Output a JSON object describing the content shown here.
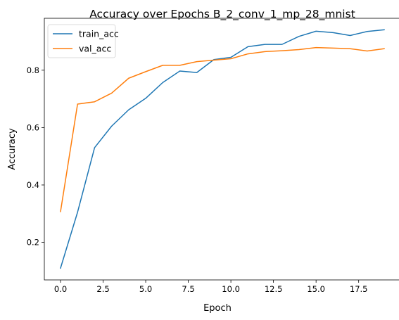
{
  "chart_data": {
    "type": "line",
    "title": "Accuracy over Epochs B_2_conv_1_mp_28_mnist",
    "xlabel": "Epoch",
    "ylabel": "Accuracy",
    "xlim": [
      -0.95,
      19.95
    ],
    "ylim": [
      0.069,
      0.981
    ],
    "xticks": [
      0.0,
      2.5,
      5.0,
      7.5,
      10.0,
      12.5,
      15.0,
      17.5
    ],
    "xtick_labels": [
      "0.0",
      "2.5",
      "5.0",
      "7.5",
      "10.0",
      "12.5",
      "15.0",
      "17.5"
    ],
    "yticks": [
      0.2,
      0.4,
      0.6,
      0.8
    ],
    "ytick_labels": [
      "0.2",
      "0.4",
      "0.6",
      "0.8"
    ],
    "grid": false,
    "legend_position": "top-left",
    "x": [
      0,
      1,
      2,
      3,
      4,
      5,
      6,
      7,
      8,
      9,
      10,
      11,
      12,
      13,
      14,
      15,
      16,
      17,
      18,
      19
    ],
    "series": [
      {
        "name": "train_acc",
        "color": "#1f77b4",
        "values": [
          0.11,
          0.305,
          0.53,
          0.605,
          0.662,
          0.702,
          0.757,
          0.797,
          0.792,
          0.837,
          0.845,
          0.882,
          0.89,
          0.89,
          0.918,
          0.936,
          0.931,
          0.921,
          0.935,
          0.941
        ]
      },
      {
        "name": "val_acc",
        "color": "#ff7f0e",
        "values": [
          0.307,
          0.682,
          0.69,
          0.72,
          0.772,
          0.795,
          0.817,
          0.817,
          0.83,
          0.835,
          0.84,
          0.857,
          0.865,
          0.868,
          0.872,
          0.879,
          0.877,
          0.875,
          0.867,
          0.875
        ]
      }
    ]
  }
}
